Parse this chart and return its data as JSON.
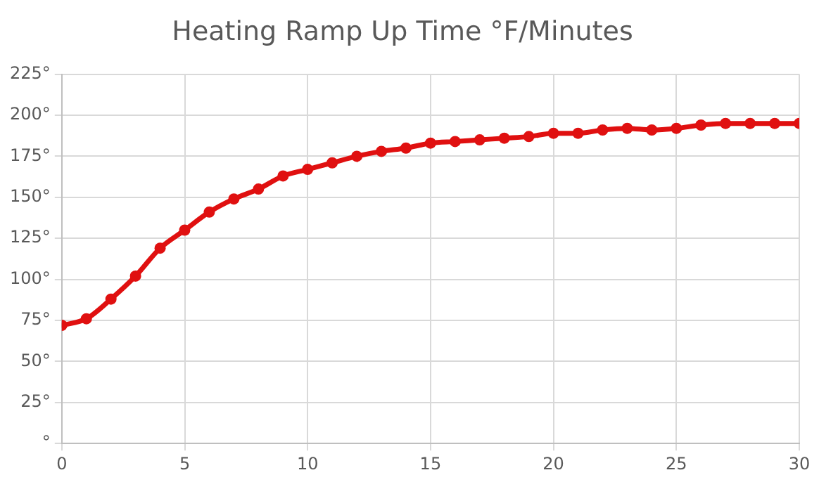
{
  "chart_data": {
    "type": "line",
    "title": "Heating Ramp Up Time °F/Minutes",
    "x": [
      0,
      1,
      2,
      3,
      4,
      5,
      6,
      7,
      8,
      9,
      10,
      11,
      12,
      13,
      14,
      15,
      16,
      17,
      18,
      19,
      20,
      21,
      22,
      23,
      24,
      25,
      26,
      27,
      28,
      29,
      30
    ],
    "series": [
      {
        "color": "#e01010",
        "values": [
          72,
          76,
          88,
          102,
          119,
          130,
          141,
          149,
          155,
          163,
          167,
          171,
          175,
          178,
          180,
          183,
          184,
          185,
          186,
          187,
          189,
          189,
          191,
          192,
          191,
          192,
          194,
          195,
          195,
          195,
          195
        ]
      }
    ],
    "xlim": [
      0,
      30
    ],
    "xticks": [
      0,
      5,
      10,
      15,
      20,
      25,
      30
    ],
    "ylim": [
      0,
      225
    ],
    "yticks": [
      {
        "value": 0,
        "label": "°"
      },
      {
        "value": 25,
        "label": "25°"
      },
      {
        "value": 50,
        "label": "50°"
      },
      {
        "value": 75,
        "label": "75°"
      },
      {
        "value": 100,
        "label": "100°"
      },
      {
        "value": 125,
        "label": "125°"
      },
      {
        "value": 150,
        "label": "150°"
      },
      {
        "value": 175,
        "label": "175°"
      },
      {
        "value": 200,
        "label": "200°"
      },
      {
        "value": 225,
        "label": "225°"
      }
    ],
    "grid": true,
    "marker": "circle",
    "line_style": "solid",
    "legend": false
  }
}
